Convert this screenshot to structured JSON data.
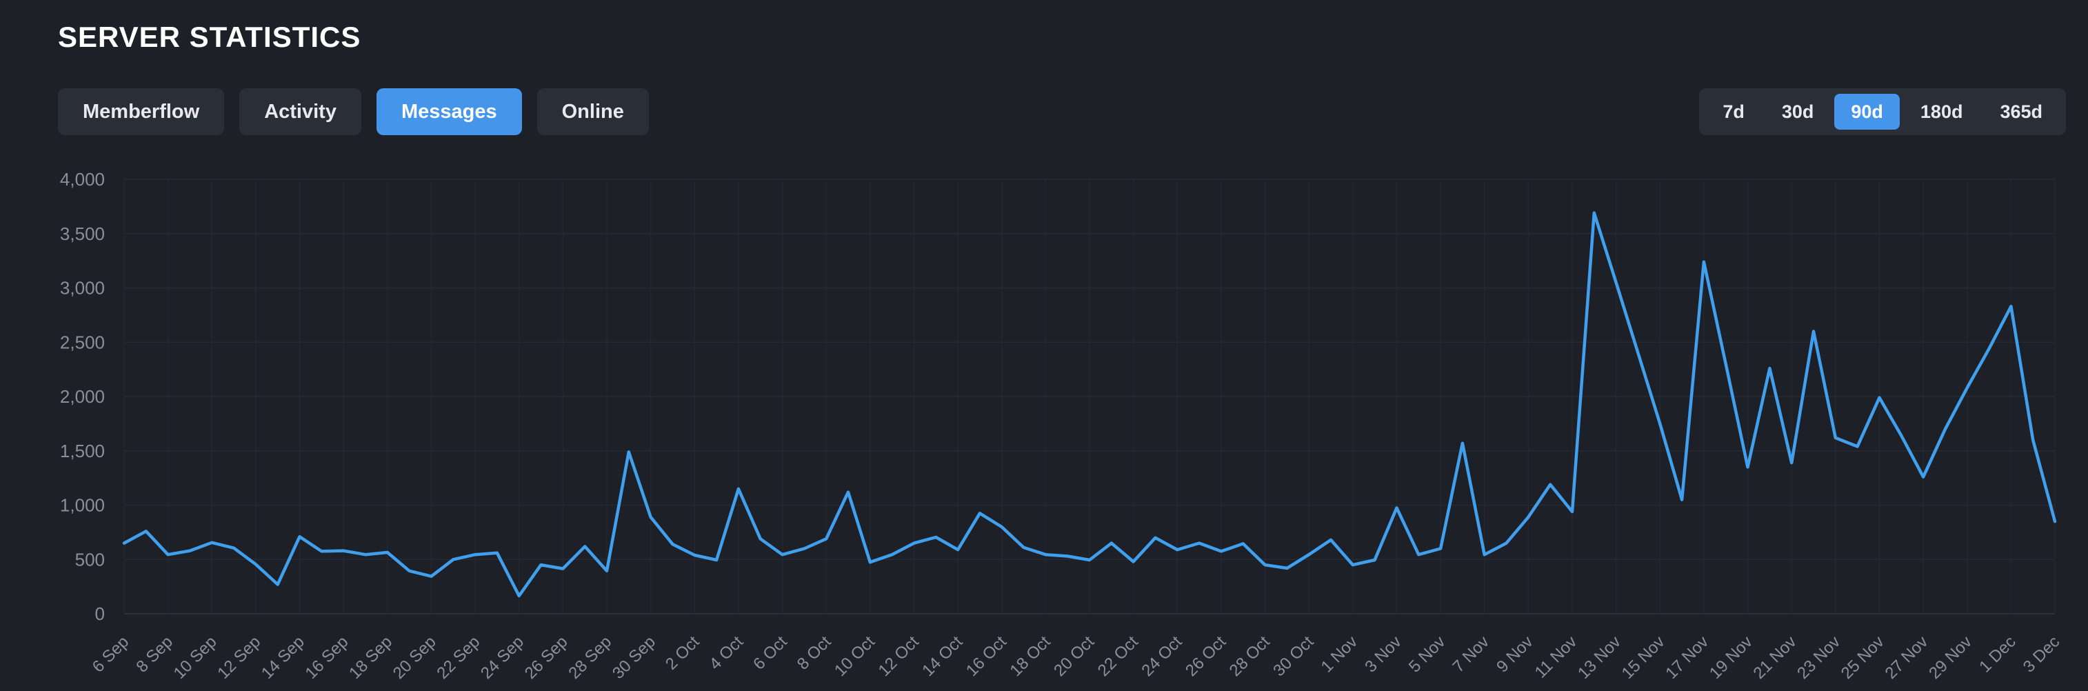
{
  "header": {
    "title": "SERVER STATISTICS"
  },
  "tabs": [
    {
      "label": "Memberflow",
      "active": false
    },
    {
      "label": "Activity",
      "active": false
    },
    {
      "label": "Messages",
      "active": true
    },
    {
      "label": "Online",
      "active": false
    }
  ],
  "ranges": [
    {
      "label": "7d",
      "active": false
    },
    {
      "label": "30d",
      "active": false
    },
    {
      "label": "90d",
      "active": true
    },
    {
      "label": "180d",
      "active": false
    },
    {
      "label": "365d",
      "active": false
    }
  ],
  "colors": {
    "background": "#1d2027",
    "panel": "#2a2e37",
    "accent": "#4596eb",
    "line": "#40a0ee",
    "axis_text": "#8b8f97",
    "grid_h": "#262a32",
    "grid_v": "#24272f",
    "baseline": "#31353d"
  },
  "chart_data": {
    "type": "line",
    "title": "Server messages per day",
    "series_name": "Messages",
    "xlabel": "",
    "ylabel": "",
    "ylim": [
      0,
      4000
    ],
    "grid": true,
    "legend": "none",
    "y_ticks": [
      0,
      500,
      1000,
      1500,
      2000,
      2500,
      3000,
      3500,
      4000
    ],
    "x": [
      "6 Sep",
      "7 Sep",
      "8 Sep",
      "9 Sep",
      "10 Sep",
      "11 Sep",
      "12 Sep",
      "13 Sep",
      "14 Sep",
      "15 Sep",
      "16 Sep",
      "17 Sep",
      "18 Sep",
      "19 Sep",
      "20 Sep",
      "21 Sep",
      "22 Sep",
      "23 Sep",
      "24 Sep",
      "25 Sep",
      "26 Sep",
      "27 Sep",
      "28 Sep",
      "29 Sep",
      "30 Sep",
      "1 Oct",
      "2 Oct",
      "3 Oct",
      "4 Oct",
      "5 Oct",
      "6 Oct",
      "7 Oct",
      "8 Oct",
      "9 Oct",
      "10 Oct",
      "11 Oct",
      "12 Oct",
      "13 Oct",
      "14 Oct",
      "15 Oct",
      "16 Oct",
      "17 Oct",
      "18 Oct",
      "19 Oct",
      "20 Oct",
      "21 Oct",
      "22 Oct",
      "23 Oct",
      "24 Oct",
      "25 Oct",
      "26 Oct",
      "27 Oct",
      "28 Oct",
      "29 Oct",
      "30 Oct",
      "31 Oct",
      "1 Nov",
      "2 Nov",
      "3 Nov",
      "4 Nov",
      "5 Nov",
      "6 Nov",
      "7 Nov",
      "8 Nov",
      "9 Nov",
      "10 Nov",
      "11 Nov",
      "12 Nov",
      "13 Nov",
      "14 Nov",
      "15 Nov",
      "16 Nov",
      "17 Nov",
      "18 Nov",
      "19 Nov",
      "20 Nov",
      "21 Nov",
      "22 Nov",
      "23 Nov",
      "24 Nov",
      "25 Nov",
      "26 Nov",
      "27 Nov",
      "28 Nov",
      "29 Nov",
      "30 Nov",
      "1 Dec",
      "2 Dec",
      "3 Dec"
    ],
    "values": [
      650,
      760,
      545,
      580,
      655,
      605,
      455,
      270,
      710,
      575,
      580,
      545,
      565,
      395,
      345,
      500,
      545,
      560,
      165,
      450,
      415,
      620,
      395,
      1490,
      890,
      640,
      540,
      495,
      1150,
      690,
      545,
      600,
      690,
      1120,
      475,
      545,
      650,
      705,
      590,
      925,
      800,
      610,
      545,
      530,
      495,
      650,
      480,
      700,
      590,
      650,
      575,
      645,
      450,
      420,
      545,
      680,
      450,
      495,
      975,
      545,
      600,
      1570,
      545,
      650,
      890,
      1190,
      940,
      3690,
      3050,
      2400,
      1750,
      1050,
      3240,
      2300,
      1350,
      2260,
      1390,
      2600,
      1620,
      1540,
      1990,
      1640,
      1260,
      1700,
      2080,
      2440,
      2830,
      1600,
      850
    ],
    "x_tick_labels": [
      "6 Sep",
      "8 Sep",
      "10 Sep",
      "12 Sep",
      "14 Sep",
      "16 Sep",
      "18 Sep",
      "20 Sep",
      "22 Sep",
      "24 Sep",
      "26 Sep",
      "28 Sep",
      "30 Sep",
      "2 Oct",
      "4 Oct",
      "6 Oct",
      "8 Oct",
      "10 Oct",
      "12 Oct",
      "14 Oct",
      "16 Oct",
      "18 Oct",
      "20 Oct",
      "22 Oct",
      "24 Oct",
      "26 Oct",
      "28 Oct",
      "30 Oct",
      "1 Nov",
      "3 Nov",
      "5 Nov",
      "7 Nov",
      "9 Nov",
      "11 Nov",
      "13 Nov",
      "15 Nov",
      "17 Nov",
      "19 Nov",
      "21 Nov",
      "23 Nov",
      "25 Nov",
      "27 Nov",
      "29 Nov",
      "1 Dec",
      "3 Dec"
    ]
  }
}
